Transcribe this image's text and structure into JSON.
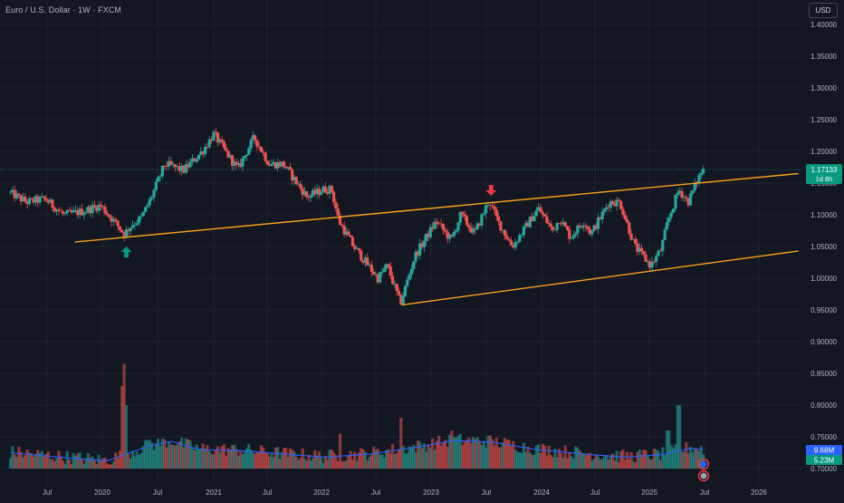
{
  "header": {
    "title": "Euro / U.S. Dollar · 1W · FXCM",
    "currency_button": "USD"
  },
  "price_tag": {
    "value": "1.17133",
    "countdown": "1d 8h",
    "color": "#089981"
  },
  "volume_tags": [
    {
      "value": "9.68M",
      "color": "#2962ff"
    },
    {
      "value": "5.23M",
      "color": "#089981"
    }
  ],
  "colors": {
    "background": "#131722",
    "up": "#26a69a",
    "down": "#ef5350",
    "trendline": "#f7a21b",
    "volume_ma": "#2962ff",
    "up_arrow": "#089981",
    "down_arrow": "#f23645"
  },
  "chart_data": {
    "type": "candlestick",
    "symbol": "EURUSD",
    "timeframe": "1W",
    "ylim": [
      0.7,
      1.4
    ],
    "y_ticks": [
      "1.40000",
      "1.35000",
      "1.30000",
      "1.25000",
      "1.20000",
      "1.15000",
      "1.10000",
      "1.05000",
      "1.00000",
      "0.95000",
      "0.90000",
      "0.85000",
      "0.80000",
      "0.75000",
      "0.70000"
    ],
    "x_ticks": [
      "Jul",
      "2020",
      "Jul",
      "2021",
      "Jul",
      "2022",
      "Jul",
      "2023",
      "Jul",
      "2024",
      "Jul",
      "2025",
      "Jul",
      "2026"
    ],
    "xlim": [
      "2019-03-01",
      "2026-06-15"
    ],
    "price_path": [
      [
        "2019-03-01",
        1.136
      ],
      [
        "2019-05-01",
        1.12
      ],
      [
        "2019-07-01",
        1.125
      ],
      [
        "2019-09-01",
        1.1
      ],
      [
        "2019-11-01",
        1.105
      ],
      [
        "2020-01-01",
        1.115
      ],
      [
        "2020-02-15",
        1.09
      ],
      [
        "2020-03-20",
        1.07
      ],
      [
        "2020-04-15",
        1.085
      ],
      [
        "2020-05-15",
        1.095
      ],
      [
        "2020-06-15",
        1.125
      ],
      [
        "2020-08-01",
        1.18
      ],
      [
        "2020-10-01",
        1.17
      ],
      [
        "2020-12-01",
        1.2
      ],
      [
        "2021-01-08",
        1.227
      ],
      [
        "2021-03-30",
        1.172
      ],
      [
        "2021-05-25",
        1.222
      ],
      [
        "2021-07-15",
        1.18
      ],
      [
        "2021-09-01",
        1.18
      ],
      [
        "2021-11-20",
        1.128
      ],
      [
        "2022-01-15",
        1.14
      ],
      [
        "2022-02-10",
        1.14
      ],
      [
        "2022-03-07",
        1.09
      ],
      [
        "2022-04-25",
        1.05
      ],
      [
        "2022-07-15",
        1.0
      ],
      [
        "2022-08-15",
        1.02
      ],
      [
        "2022-09-28",
        0.96
      ],
      [
        "2022-11-15",
        1.035
      ],
      [
        "2023-01-25",
        1.09
      ],
      [
        "2023-03-15",
        1.06
      ],
      [
        "2023-04-15",
        1.1
      ],
      [
        "2023-05-30",
        1.07
      ],
      [
        "2023-07-17",
        1.123
      ],
      [
        "2023-08-15",
        1.09
      ],
      [
        "2023-10-03",
        1.05
      ],
      [
        "2023-12-28",
        1.11
      ],
      [
        "2024-02-15",
        1.075
      ],
      [
        "2024-03-10",
        1.095
      ],
      [
        "2024-04-15",
        1.065
      ],
      [
        "2024-06-01",
        1.09
      ],
      [
        "2024-06-25",
        1.07
      ],
      [
        "2024-08-25",
        1.12
      ],
      [
        "2024-09-30",
        1.12
      ],
      [
        "2024-11-20",
        1.05
      ],
      [
        "2025-01-13",
        1.02
      ],
      [
        "2025-02-15",
        1.045
      ],
      [
        "2025-03-10",
        1.09
      ],
      [
        "2025-04-15",
        1.14
      ],
      [
        "2025-05-15",
        1.12
      ],
      [
        "2025-06-10",
        1.15
      ],
      [
        "2025-07-01",
        1.17133
      ]
    ],
    "trendlines": [
      {
        "name": "upper",
        "from": [
          "2019-10-01",
          1.057
        ],
        "to": [
          "2026-05-15",
          1.165
        ]
      },
      {
        "name": "lower",
        "from": [
          "2022-09-26",
          0.958
        ],
        "to": [
          "2026-05-15",
          1.043
        ]
      }
    ],
    "markers": [
      {
        "type": "up-arrow",
        "date": "2020-03-20",
        "price": 1.04
      },
      {
        "type": "down-arrow",
        "date": "2023-07-17",
        "price": 1.14
      }
    ],
    "volume": {
      "spikes": [
        [
          "2020-03-15",
          0.865
        ],
        [
          "2020-03-08",
          0.83
        ],
        [
          "2020-03-22",
          0.8
        ],
        [
          "2022-09-25",
          0.78
        ],
        [
          "2023-03-12",
          0.76
        ],
        [
          "2025-04-07",
          0.8
        ],
        [
          "2025-03-03",
          0.76
        ],
        [
          "2022-03-06",
          0.755
        ],
        [
          "2020-06-01",
          0.745
        ]
      ],
      "ma": [
        [
          "2019-03-01",
          0.725
        ],
        [
          "2019-09-01",
          0.717
        ],
        [
          "2020-01-15",
          0.712
        ],
        [
          "2020-04-01",
          0.725
        ],
        [
          "2020-06-01",
          0.735
        ],
        [
          "2020-08-15",
          0.743
        ],
        [
          "2020-11-15",
          0.73
        ],
        [
          "2021-04-15",
          0.728
        ],
        [
          "2021-09-15",
          0.722
        ],
        [
          "2022-01-15",
          0.718
        ],
        [
          "2022-06-15",
          0.723
        ],
        [
          "2022-12-01",
          0.735
        ],
        [
          "2023-03-15",
          0.744
        ],
        [
          "2023-07-15",
          0.742
        ],
        [
          "2023-12-15",
          0.73
        ],
        [
          "2024-06-15",
          0.722
        ],
        [
          "2024-10-15",
          0.718
        ],
        [
          "2025-02-15",
          0.722
        ],
        [
          "2025-05-15",
          0.732
        ],
        [
          "2025-06-25",
          0.73
        ]
      ]
    }
  }
}
